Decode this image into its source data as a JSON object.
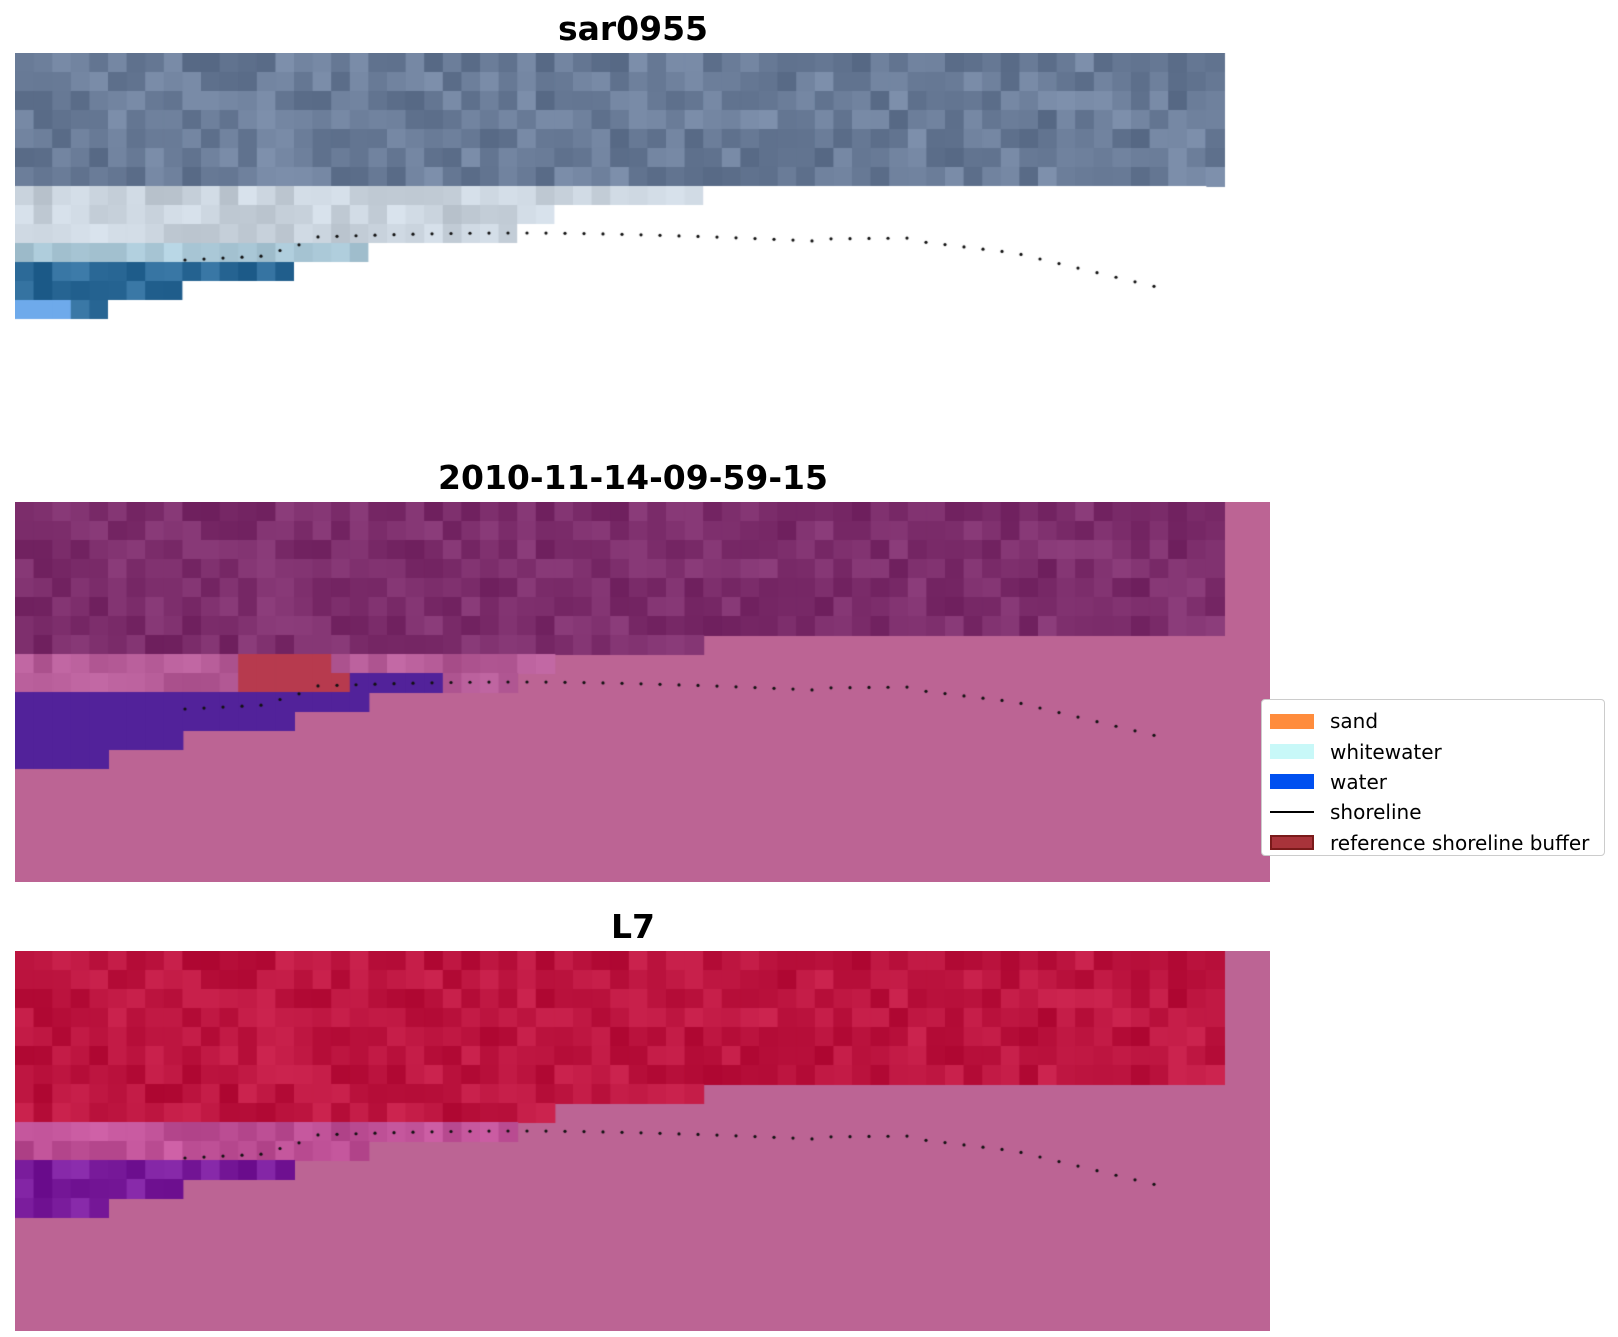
{
  "panels": [
    {
      "title": "sar0955"
    },
    {
      "title": "2010-11-14-09-59-15"
    },
    {
      "title": "L7"
    }
  ],
  "legend": {
    "items": [
      {
        "label": "sand",
        "color": "#ff8c3c",
        "kind": "patch"
      },
      {
        "label": "whitewater",
        "color": "#c8f8f8",
        "kind": "patch"
      },
      {
        "label": "water",
        "color": "#0050f0",
        "kind": "patch"
      },
      {
        "label": "shoreline",
        "color": "#000000",
        "kind": "line"
      },
      {
        "label": "reference shoreline buffer",
        "color": "#a8333a",
        "kind": "buffer"
      }
    ]
  },
  "colors": {
    "rgb_sky": "#6a7c98",
    "rgb_sea": "#2c6a98",
    "class_land": "#7d2e6c",
    "class_water": "#52229a",
    "class_nodata": "#bc6494",
    "mndwi_land": "#bd1540",
    "mndwi_water": "#7a1c9c",
    "reference_buffer": "#b73a4e"
  }
}
